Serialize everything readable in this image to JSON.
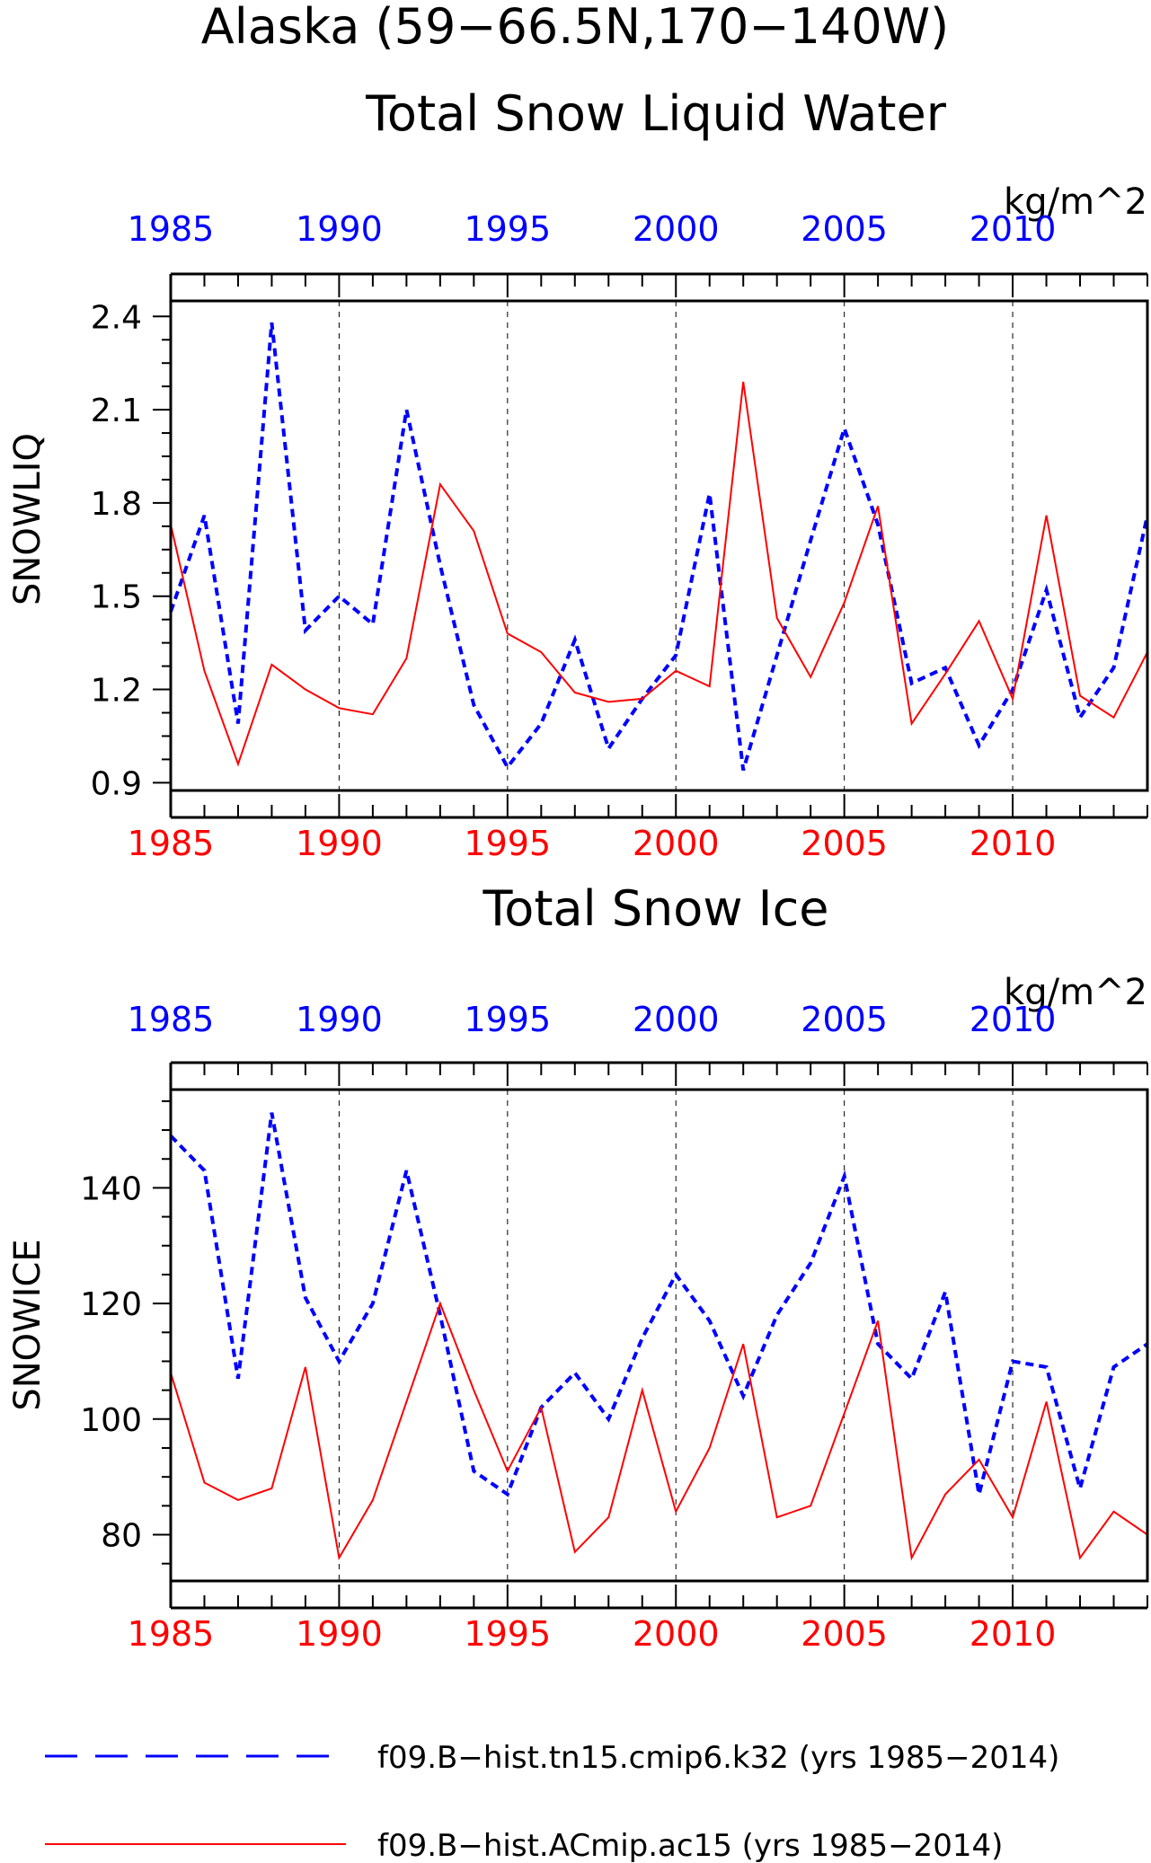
{
  "figure": {
    "title_line1": "Alaska (59−66.5N,170−140W)",
    "units": "kg/m^2"
  },
  "colors": {
    "series_dashed": "#0000ff",
    "series_solid": "#ff0000",
    "axis": "#000000",
    "grid": "#000000"
  },
  "legend": [
    {
      "label": "f09.B−hist.tn15.cmip6.k32 (yrs 1985−2014)",
      "style": "dashed",
      "color": "#0000ff"
    },
    {
      "label": "f09.B−hist.ACmip.ac15 (yrs 1985−2014)",
      "style": "solid",
      "color": "#ff0000"
    }
  ],
  "chart_data": [
    {
      "type": "line",
      "title": "Total Snow Liquid Water",
      "ylabel": "SNOWLIQ",
      "units": "kg/m^2",
      "xlim": [
        1985,
        2014
      ],
      "ylim": [
        0.875,
        2.45
      ],
      "yticks": [
        "0.9",
        "1.2",
        "1.5",
        "1.8",
        "2.1",
        "2.4"
      ],
      "xticks": [
        "1985",
        "1990",
        "1995",
        "2000",
        "2005",
        "2010"
      ],
      "grid_x": [
        1990,
        1995,
        2000,
        2005,
        2010
      ],
      "x": [
        1985,
        1986,
        1987,
        1988,
        1989,
        1990,
        1991,
        1992,
        1993,
        1994,
        1995,
        1996,
        1997,
        1998,
        1999,
        2000,
        2001,
        2002,
        2003,
        2004,
        2005,
        2006,
        2007,
        2008,
        2009,
        2010,
        2011,
        2012,
        2013,
        2014
      ],
      "series": [
        {
          "name": "f09.B−hist.tn15.cmip6.k32 (yrs 1985−2014)",
          "style": "dashed",
          "values": [
            1.45,
            1.76,
            1.09,
            2.38,
            1.39,
            1.5,
            1.41,
            2.1,
            1.6,
            1.15,
            0.95,
            1.09,
            1.36,
            1.01,
            1.17,
            1.31,
            1.83,
            0.94,
            1.31,
            1.68,
            2.04,
            1.73,
            1.22,
            1.27,
            1.02,
            1.2,
            1.52,
            1.11,
            1.27,
            1.76
          ]
        },
        {
          "name": "f09.B−hist.ACmip.ac15 (yrs 1985−2014)",
          "style": "solid",
          "values": [
            1.73,
            1.26,
            0.96,
            1.28,
            1.2,
            1.14,
            1.12,
            1.3,
            1.86,
            1.71,
            1.38,
            1.32,
            1.19,
            1.16,
            1.17,
            1.26,
            1.21,
            2.19,
            1.43,
            1.24,
            1.48,
            1.79,
            1.09,
            1.25,
            1.42,
            1.17,
            1.76,
            1.18,
            1.11,
            1.32
          ]
        }
      ]
    },
    {
      "type": "line",
      "title": "Total Snow Ice",
      "ylabel": "SNOWICE",
      "units": "kg/m^2",
      "xlim": [
        1985,
        2014
      ],
      "ylim": [
        72,
        157
      ],
      "yticks": [
        "80",
        "100",
        "120",
        "140"
      ],
      "xticks": [
        "1985",
        "1990",
        "1995",
        "2000",
        "2005",
        "2010"
      ],
      "grid_x": [
        1990,
        1995,
        2000,
        2005,
        2010
      ],
      "x": [
        1985,
        1986,
        1987,
        1988,
        1989,
        1990,
        1991,
        1992,
        1993,
        1994,
        1995,
        1996,
        1997,
        1998,
        1999,
        2000,
        2001,
        2002,
        2003,
        2004,
        2005,
        2006,
        2007,
        2008,
        2009,
        2010,
        2011,
        2012,
        2013,
        2014
      ],
      "series": [
        {
          "name": "f09.B−hist.tn15.cmip6.k32 (yrs 1985−2014)",
          "style": "dashed",
          "values": [
            149,
            143,
            107,
            153,
            121,
            110,
            120,
            143,
            118,
            91,
            87,
            102,
            108,
            100,
            114,
            125,
            117,
            104,
            118,
            127,
            142,
            113,
            107,
            122,
            87,
            110,
            109,
            88,
            109,
            113
          ]
        },
        {
          "name": "f09.B−hist.ACmip.ac15 (yrs 1985−2014)",
          "style": "solid",
          "values": [
            108,
            89,
            86,
            88,
            109,
            76,
            86,
            103,
            120,
            105,
            91,
            102,
            77,
            83,
            105,
            84,
            95,
            113,
            83,
            85,
            101,
            117,
            76,
            87,
            93,
            83,
            103,
            76,
            84,
            80
          ]
        }
      ]
    }
  ]
}
